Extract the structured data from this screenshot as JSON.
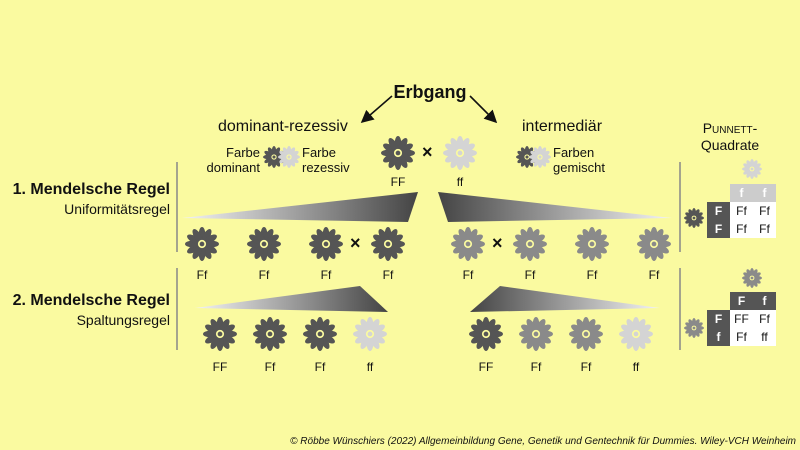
{
  "title": "Erbgang",
  "dominant_recessive": "dominant-rezessiv",
  "intermediate": "intermediär",
  "farbe_dominant": [
    "Farbe",
    "dominant"
  ],
  "farbe_rezessiv": [
    "Farbe",
    "rezessiv"
  ],
  "farben_gemischt": [
    "Farben",
    "gemischt"
  ],
  "cross_symbol": "×",
  "parents": [
    "FF",
    "ff"
  ],
  "rule1": {
    "title": "1. Mendelsche Regel",
    "subtitle": "Uniformitätsregel"
  },
  "rule2": {
    "title": "2. Mendelsche Regel",
    "subtitle": "Spaltungsregel"
  },
  "f1_labels": [
    "Ff",
    "Ff",
    "Ff",
    "Ff",
    "Ff",
    "Ff",
    "Ff",
    "Ff"
  ],
  "f2_labels": [
    "FF",
    "Ff",
    "Ff",
    "ff",
    "FF",
    "Ff",
    "Ff",
    "ff"
  ],
  "punnett": {
    "title_small_caps": "Punnett-",
    "title_line2": "Quadrate",
    "grid1": {
      "header": [
        "f",
        "f"
      ],
      "rows": [
        [
          "F",
          "Ff",
          "Ff"
        ],
        [
          "F",
          "Ff",
          "Ff"
        ]
      ]
    },
    "grid2": {
      "header": [
        "F",
        "f"
      ],
      "rows": [
        [
          "F",
          "FF",
          "Ff"
        ],
        [
          "f",
          "Ff",
          "ff"
        ]
      ]
    }
  },
  "colors": {
    "background": "#fafaa0",
    "dominant": "#555555",
    "intermediate": "#8a8a8a",
    "recessive": "#d4d4d4"
  },
  "copyright": "© Röbbe Wünschiers (2022) Allgemeinbildung Gene, Genetik und Gentechnik für Dummies. Wiley-VCH Weinheim"
}
